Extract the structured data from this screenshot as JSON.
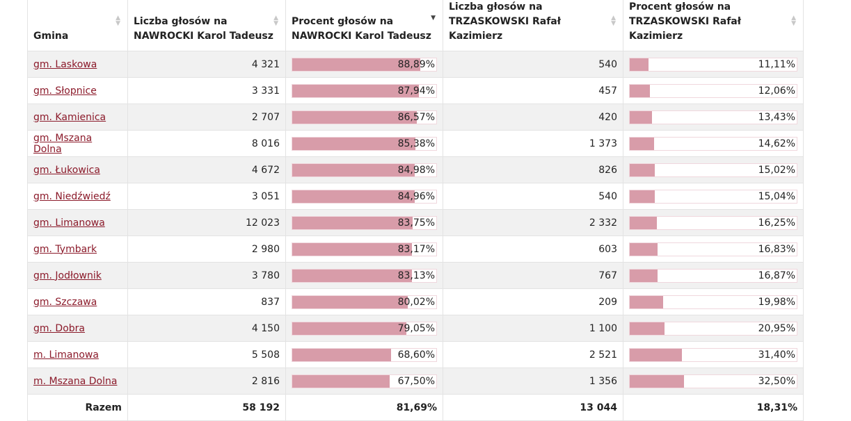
{
  "table": {
    "headers": {
      "gmina": "Gmina",
      "nawrocki_count_line1": "Liczba głosów na",
      "nawrocki_count_line2": "NAWROCKI Karol Tadeusz",
      "nawrocki_pct_line1": "Procent głosów na",
      "nawrocki_pct_line2": "NAWROCKI Karol Tadeusz",
      "trzaskowski_count_line1": "Liczba głosów na",
      "trzaskowski_count_line2": "TRZASKOWSKI Rafał Kazimierz",
      "trzaskowski_pct_line1": "Procent głosów na",
      "trzaskowski_pct_line2": "TRZASKOWSKI Rafał Kazimierz"
    },
    "sort_icons": {
      "up": "▲",
      "down": "▼"
    },
    "rows": [
      {
        "name": "gm. Laskowa",
        "n_count": "4 321",
        "n_pct": "88,89%",
        "n_val": 88.89,
        "t_count": "540",
        "t_pct": "11,11%",
        "t_val": 11.11
      },
      {
        "name": "gm. Słopnice",
        "n_count": "3 331",
        "n_pct": "87,94%",
        "n_val": 87.94,
        "t_count": "457",
        "t_pct": "12,06%",
        "t_val": 12.06
      },
      {
        "name": "gm. Kamienica",
        "n_count": "2 707",
        "n_pct": "86,57%",
        "n_val": 86.57,
        "t_count": "420",
        "t_pct": "13,43%",
        "t_val": 13.43
      },
      {
        "name": "gm. Mszana Dolna",
        "n_count": "8 016",
        "n_pct": "85,38%",
        "n_val": 85.38,
        "t_count": "1 373",
        "t_pct": "14,62%",
        "t_val": 14.62
      },
      {
        "name": "gm. Łukowica",
        "n_count": "4 672",
        "n_pct": "84,98%",
        "n_val": 84.98,
        "t_count": "826",
        "t_pct": "15,02%",
        "t_val": 15.02
      },
      {
        "name": "gm. Niedźwiedź",
        "n_count": "3 051",
        "n_pct": "84,96%",
        "n_val": 84.96,
        "t_count": "540",
        "t_pct": "15,04%",
        "t_val": 15.04
      },
      {
        "name": "gm. Limanowa",
        "n_count": "12 023",
        "n_pct": "83,75%",
        "n_val": 83.75,
        "t_count": "2 332",
        "t_pct": "16,25%",
        "t_val": 16.25
      },
      {
        "name": "gm. Tymbark",
        "n_count": "2 980",
        "n_pct": "83,17%",
        "n_val": 83.17,
        "t_count": "603",
        "t_pct": "16,83%",
        "t_val": 16.83
      },
      {
        "name": "gm. Jodłownik",
        "n_count": "3 780",
        "n_pct": "83,13%",
        "n_val": 83.13,
        "t_count": "767",
        "t_pct": "16,87%",
        "t_val": 16.87
      },
      {
        "name": "gm. Szczawa",
        "n_count": "837",
        "n_pct": "80,02%",
        "n_val": 80.02,
        "t_count": "209",
        "t_pct": "19,98%",
        "t_val": 19.98
      },
      {
        "name": "gm. Dobra",
        "n_count": "4 150",
        "n_pct": "79,05%",
        "n_val": 79.05,
        "t_count": "1 100",
        "t_pct": "20,95%",
        "t_val": 20.95
      },
      {
        "name": "m. Limanowa",
        "n_count": "5 508",
        "n_pct": "68,60%",
        "n_val": 68.6,
        "t_count": "2 521",
        "t_pct": "31,40%",
        "t_val": 31.4
      },
      {
        "name": "m. Mszana Dolna",
        "n_count": "2 816",
        "n_pct": "67,50%",
        "n_val": 67.5,
        "t_count": "1 356",
        "t_pct": "32,50%",
        "t_val": 32.5
      }
    ],
    "footer": {
      "label": "Razem",
      "n_count": "58 192",
      "n_pct": "81,69%",
      "t_count": "13 044",
      "t_pct": "18,31%"
    }
  },
  "colors": {
    "bar_fill": "#d89ca9",
    "link": "#8b1a2a",
    "odd_row": "#f1f1f1"
  }
}
